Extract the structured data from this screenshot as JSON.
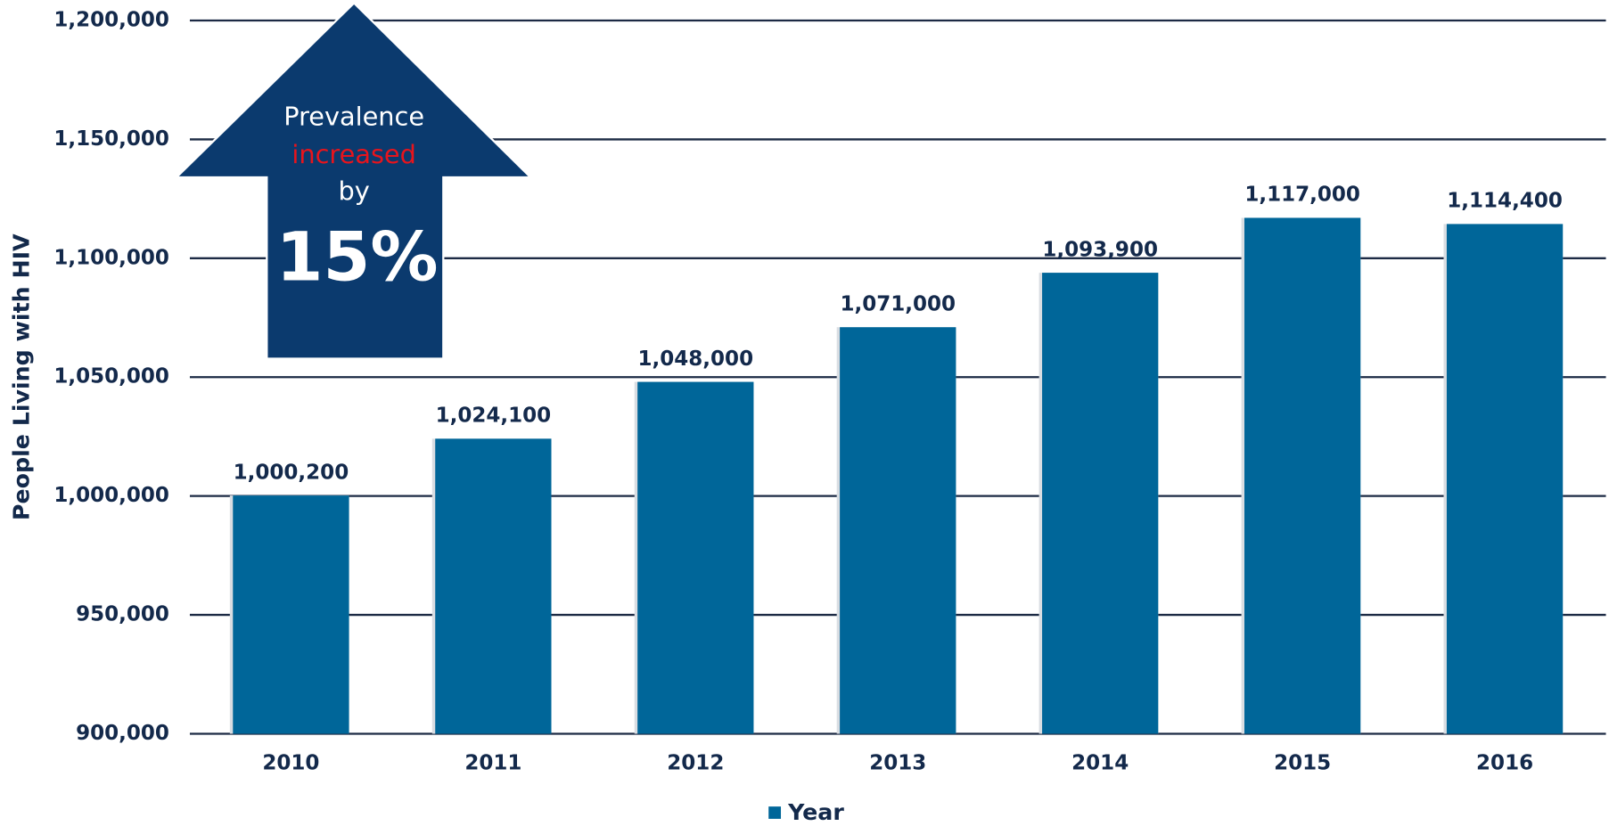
{
  "chart_data": {
    "type": "bar",
    "y_label": "People Living with HIV",
    "categories": [
      "2010",
      "2011",
      "2012",
      "2013",
      "2014",
      "2015",
      "2016"
    ],
    "series": [
      {
        "name": "Year",
        "color": "#006699",
        "values": [
          1000200,
          1024100,
          1048000,
          1071000,
          1093900,
          1117000,
          1114400
        ],
        "value_labels": [
          "1,000,200",
          "1,024,100",
          "1,048,000",
          "1,071,000",
          "1,093,900",
          "1,117,000",
          "1,114,400"
        ]
      }
    ],
    "ylim": [
      900000,
      1200000
    ],
    "yticks": [
      {
        "value": 900000,
        "label": "900,000"
      },
      {
        "value": 950000,
        "label": "950,000"
      },
      {
        "value": 1000000,
        "label": "1,000,000"
      },
      {
        "value": 1050000,
        "label": "1,050,000"
      },
      {
        "value": 1100000,
        "label": "1,100,000"
      },
      {
        "value": 1150000,
        "label": "1,150,000"
      },
      {
        "value": 1200000,
        "label": "1,200,000"
      }
    ],
    "grid": true,
    "legend": "bottom",
    "annotation": {
      "lines": [
        "Prevalence",
        "increased",
        "by",
        "15%"
      ]
    }
  }
}
